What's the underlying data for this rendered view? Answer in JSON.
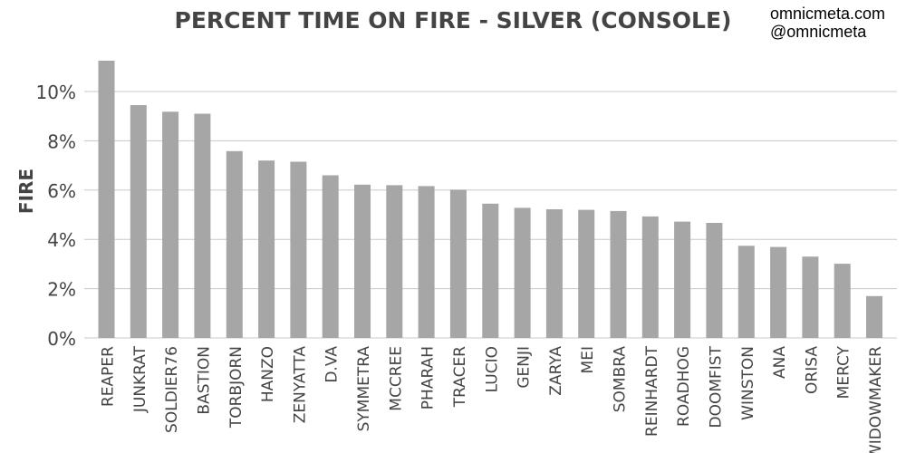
{
  "watermark": {
    "line1": "omnicmeta.com",
    "line2": "@omnicmeta"
  },
  "chart_data": {
    "type": "bar",
    "title": "PERCENT TIME ON FIRE - SILVER (CONSOLE)",
    "xlabel": "",
    "ylabel": "FIRE",
    "ylim": [
      0,
      0.115
    ],
    "yticks": [
      0,
      0.02,
      0.04,
      0.06,
      0.08,
      0.1
    ],
    "ytick_labels": [
      "0%",
      "2%",
      "4%",
      "6%",
      "8%",
      "10%"
    ],
    "grid": true,
    "bar_color": "#a6a6a6",
    "grid_color": "#c8c8c8",
    "categories": [
      "REAPER",
      "JUNKRAT",
      "SOLDIER76",
      "BASTION",
      "TORBJORN",
      "HANZO",
      "ZENYATTA",
      "D.VA",
      "SYMMETRA",
      "MCCREE",
      "PHARAH",
      "TRACER",
      "LUCIO",
      "GENJI",
      "ZARYA",
      "MEI",
      "SOMBRA",
      "REINHARDT",
      "ROADHOG",
      "DOOMFIST",
      "WINSTON",
      "ANA",
      "ORISA",
      "MERCY",
      "WIDOWMAKER"
    ],
    "values": [
      0.1125,
      0.0945,
      0.0918,
      0.091,
      0.0758,
      0.072,
      0.0715,
      0.066,
      0.0622,
      0.062,
      0.0616,
      0.0601,
      0.0545,
      0.0528,
      0.0522,
      0.052,
      0.0515,
      0.0493,
      0.0472,
      0.0467,
      0.0374,
      0.0369,
      0.033,
      0.0301,
      0.017
    ]
  }
}
